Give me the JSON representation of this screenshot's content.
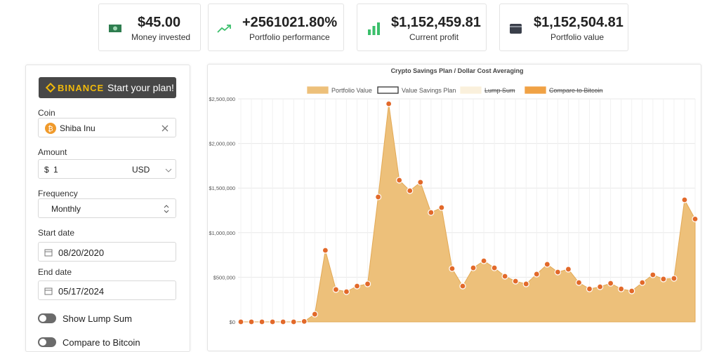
{
  "stats": [
    {
      "value": "$45.00",
      "label": "Money invested"
    },
    {
      "value": "+2561021.80%",
      "label": "Portfolio performance"
    },
    {
      "value": "$1,152,459.81",
      "label": "Current profit"
    },
    {
      "value": "$1,152,504.81",
      "label": "Portfolio value"
    }
  ],
  "form": {
    "brand": "BINANCE",
    "button": "Start your plan!",
    "coin_label": "Coin",
    "coin": "Shiba Inu",
    "amount_label": "Amount",
    "currency_symbol": "$",
    "amount": "1",
    "currency": "USD",
    "frequency_label": "Frequency",
    "frequency": "Monthly",
    "start_label": "Start date",
    "start": "08/20/2020",
    "end_label": "End date",
    "end": "05/17/2024",
    "toggles": [
      "Show Lump Sum",
      "Compare to Bitcoin"
    ]
  },
  "chart_data": {
    "type": "area",
    "title": "Crypto Savings Plan / Dollar Cost Averaging",
    "categories": [
      null,
      null,
      null,
      null,
      null,
      null,
      null,
      null,
      null,
      null,
      null,
      null,
      null,
      null,
      null,
      null,
      null,
      null,
      null,
      null,
      null,
      null,
      null,
      null,
      null,
      null,
      null,
      null,
      null,
      null,
      null,
      null,
      null,
      null,
      null,
      null,
      null,
      null,
      null,
      null,
      null,
      null,
      null,
      null
    ],
    "series": [
      {
        "name": "Portfolio Value",
        "color": "#edc07a",
        "hidden": false,
        "values": [
          0,
          0,
          0,
          0,
          0,
          0,
          5000,
          86000,
          802000,
          362000,
          338000,
          401000,
          425000,
          1400000,
          2445000,
          1588000,
          1470000,
          1565000,
          1226000,
          1281000,
          597000,
          401000,
          605000,
          684000,
          605000,
          511000,
          456000,
          425000,
          535000,
          645000,
          558000,
          590000,
          440000,
          369000,
          393000,
          432000,
          369000,
          346000,
          440000,
          527000,
          480000,
          487000,
          1368000,
          1152505
        ]
      },
      {
        "name": "Value Savings Plan",
        "color": "#ffffff",
        "hidden": false
      },
      {
        "name": "Lump Sum",
        "color": "#faf0dc",
        "hidden": true
      },
      {
        "name": "Compare to Bitcoin",
        "color": "#f0a245",
        "hidden": true
      }
    ],
    "ylim": [
      0,
      2500000
    ],
    "yticks": [
      {
        "value": 0,
        "label": "$0"
      },
      {
        "value": 500000,
        "label": "$500,000"
      },
      {
        "value": 1000000,
        "label": "$1,000,000"
      },
      {
        "value": 1500000,
        "label": "$1,500,000"
      },
      {
        "value": 2000000,
        "label": "$2,000,000"
      },
      {
        "value": 2500000,
        "label": "$2,500,000"
      }
    ],
    "grid": true
  }
}
